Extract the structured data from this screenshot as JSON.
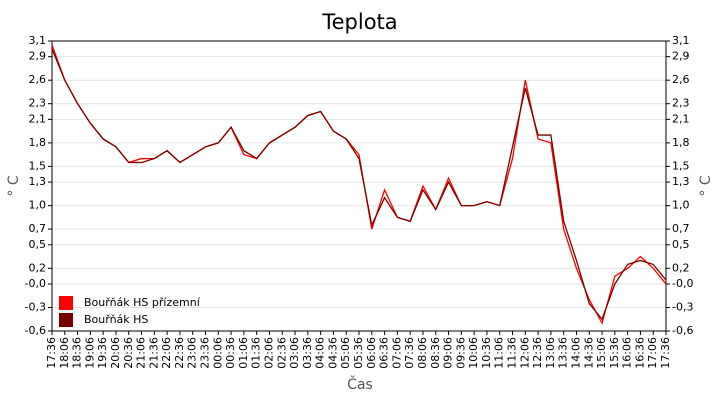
{
  "chart_data": {
    "type": "line",
    "title": "Teplota",
    "x_label": "Čas",
    "y_label": "° C",
    "y2_label": "° C",
    "categories": [
      "17:36",
      "18:06",
      "18:36",
      "19:06",
      "19:36",
      "20:06",
      "20:36",
      "21:06",
      "21:36",
      "22:06",
      "22:36",
      "23:06",
      "23:36",
      "00:06",
      "00:36",
      "01:06",
      "01:36",
      "02:06",
      "02:36",
      "03:06",
      "03:36",
      "04:06",
      "04:36",
      "05:06",
      "05:36",
      "06:06",
      "06:36",
      "07:06",
      "07:36",
      "08:06",
      "08:36",
      "09:06",
      "09:36",
      "10:06",
      "10:36",
      "11:06",
      "11:36",
      "12:06",
      "12:36",
      "13:06",
      "13:36",
      "14:06",
      "14:36",
      "15:06",
      "15:36",
      "16:06",
      "16:36",
      "17:06",
      "17:36"
    ],
    "series": [
      {
        "name": "Bouřňák HS přízemní",
        "color": "#ff0000",
        "values": [
          3.05,
          2.6,
          2.3,
          2.05,
          1.85,
          1.75,
          1.55,
          1.6,
          1.6,
          1.7,
          1.55,
          1.65,
          1.75,
          1.8,
          2.0,
          1.65,
          1.6,
          1.8,
          1.9,
          2.0,
          2.15,
          2.2,
          1.95,
          1.85,
          1.65,
          0.7,
          1.2,
          0.85,
          0.8,
          1.25,
          0.95,
          1.35,
          1.0,
          1.0,
          1.05,
          1.0,
          1.6,
          2.6,
          1.85,
          1.8,
          0.7,
          0.2,
          -0.2,
          -0.5,
          0.1,
          0.2,
          0.35,
          0.2,
          0.0
        ]
      },
      {
        "name": "Bouřňák HS",
        "color": "#7a0000",
        "values": [
          3.0,
          2.6,
          2.3,
          2.05,
          1.85,
          1.75,
          1.55,
          1.55,
          1.6,
          1.7,
          1.55,
          1.65,
          1.75,
          1.8,
          2.0,
          1.7,
          1.6,
          1.8,
          1.9,
          2.0,
          2.15,
          2.2,
          1.95,
          1.85,
          1.6,
          0.75,
          1.1,
          0.85,
          0.8,
          1.2,
          0.95,
          1.3,
          1.0,
          1.0,
          1.05,
          1.0,
          1.75,
          2.5,
          1.9,
          1.9,
          0.8,
          0.3,
          -0.25,
          -0.45,
          0.0,
          0.25,
          0.3,
          0.25,
          0.05
        ]
      }
    ],
    "ylim": [
      -0.6,
      3.1
    ],
    "yticks": [
      {
        "value": 3.1,
        "label": "3,1"
      },
      {
        "value": 2.9,
        "label": "2,9"
      },
      {
        "value": 2.6,
        "label": "2,6"
      },
      {
        "value": 2.3,
        "label": "2,3"
      },
      {
        "value": 2.1,
        "label": "2,1"
      },
      {
        "value": 1.8,
        "label": "1,8"
      },
      {
        "value": 1.5,
        "label": "1,5"
      },
      {
        "value": 1.3,
        "label": "1,3"
      },
      {
        "value": 1.0,
        "label": "1,0"
      },
      {
        "value": 0.7,
        "label": "0,7"
      },
      {
        "value": 0.5,
        "label": "0,5"
      },
      {
        "value": 0.2,
        "label": "0,2"
      },
      {
        "value": 0,
        "label": "-0,0"
      },
      {
        "value": -0.3,
        "label": "-0,3"
      },
      {
        "value": -0.6,
        "label": "-0,6"
      }
    ],
    "y2lim": [
      -0.6,
      3.1
    ],
    "y2ticks": [
      {
        "value": 3.1,
        "label": "3,1"
      },
      {
        "value": 2.9,
        "label": "2,9"
      },
      {
        "value": 2.6,
        "label": "2,6"
      },
      {
        "value": 2.3,
        "label": "2,3"
      },
      {
        "value": 2.1,
        "label": "2,1"
      },
      {
        "value": 1.8,
        "label": "1,8"
      },
      {
        "value": 1.5,
        "label": "1,5"
      },
      {
        "value": 1.3,
        "label": "1,3"
      },
      {
        "value": 1.0,
        "label": "1,0"
      },
      {
        "value": 0.7,
        "label": "0,7"
      },
      {
        "value": 0.5,
        "label": "0,5"
      },
      {
        "value": 0.2,
        "label": "0,2"
      },
      {
        "value": 0,
        "label": "-0,0"
      },
      {
        "value": -0.3,
        "label": "-0,3"
      },
      {
        "value": -0.6,
        "label": "-0,6"
      }
    ],
    "grid": true,
    "legend": "lower left"
  }
}
